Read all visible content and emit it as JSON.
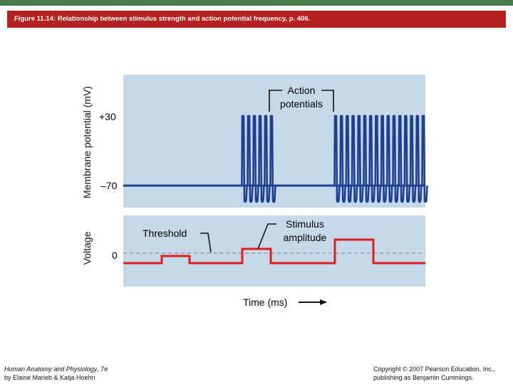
{
  "header": {
    "figure_title": "Figure 11.14: Relationship between stimulus strength and action potential frequency, p. 406."
  },
  "axes": {
    "voltage_label": "Voltage",
    "membrane_label": "Membrane potential (mV)",
    "tick_plus30": "+30",
    "tick_minus70": "–70",
    "tick_zero": "0",
    "time_label": "Time (ms)"
  },
  "annotations": {
    "action_potentials_line1": "Action",
    "action_potentials_line2": "potentials",
    "threshold": "Threshold",
    "stimulus_line1": "Stimulus",
    "stimulus_line2": "amplitude"
  },
  "footer": {
    "book_title": "Human Anatomy and Physiology",
    "book_edition": ", 7e",
    "book_authors": "by Elaine Marieb & Katja Hoehn",
    "copyright_line1": "Copyright © 2007 Pearson Education, Inc.,",
    "copyright_line2": "publishing as Benjamin Cummings."
  },
  "colors": {
    "panel_bg": "#c6d9ea",
    "trace_blue": "#1f3f92",
    "trace_red": "#e01c1c",
    "threshold_dash": "#8f8f8f",
    "title_bar": "#b52020"
  },
  "diagram_data": {
    "spike_groups": [
      {
        "stimulus": "weak",
        "spike_count": 0
      },
      {
        "stimulus": "moderate",
        "spike_count": 6
      },
      {
        "stimulus": "strong",
        "spike_count": 16
      }
    ]
  }
}
